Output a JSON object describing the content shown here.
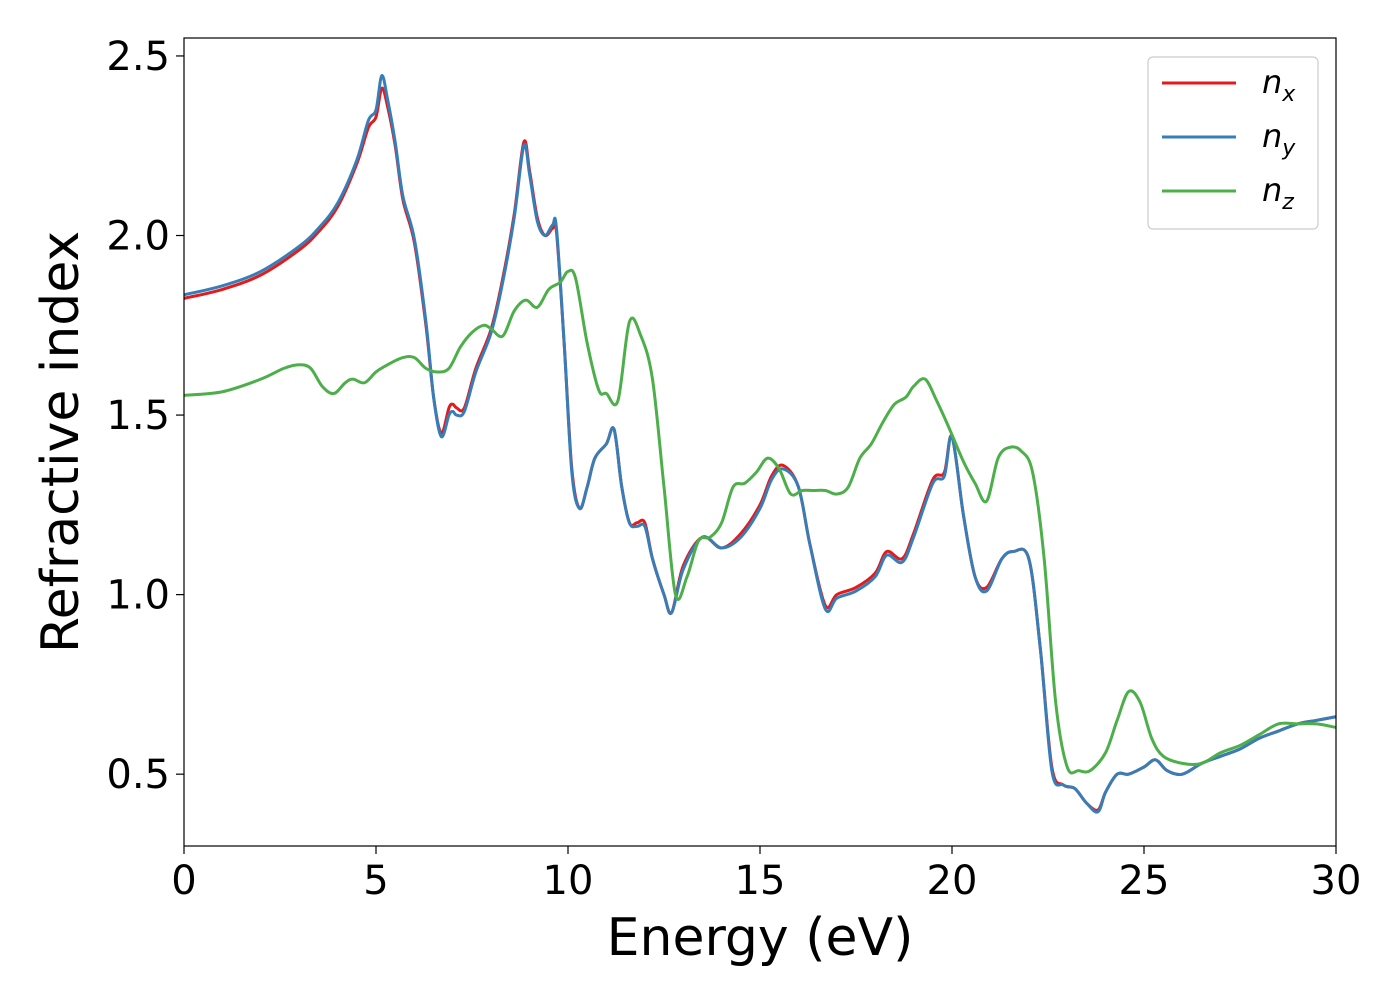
{
  "chart_data": {
    "type": "line",
    "xlabel": "Energy (eV)",
    "ylabel": "Refractive index",
    "xlim": [
      0,
      30
    ],
    "ylim": [
      0.3,
      2.55
    ],
    "xticks": [
      "0",
      "5",
      "10",
      "15",
      "20",
      "25",
      "30"
    ],
    "yticks": [
      "0.5",
      "1.0",
      "1.5",
      "2.0",
      "2.5"
    ],
    "grid": false,
    "legend_position": "top-right",
    "series": [
      {
        "key": "nx",
        "name": "n",
        "subscript": "x",
        "color": "#e41a1c",
        "x": [
          0,
          1,
          2,
          3,
          3.5,
          4,
          4.5,
          4.8,
          5.0,
          5.15,
          5.3,
          5.5,
          5.7,
          6.0,
          6.3,
          6.5,
          6.7,
          6.9,
          7.0,
          7.1,
          7.3,
          7.6,
          8.0,
          8.3,
          8.6,
          8.85,
          9.0,
          9.2,
          9.4,
          9.6,
          9.7,
          9.9,
          10.1,
          10.3,
          10.5,
          10.7,
          11.0,
          11.2,
          11.4,
          11.6,
          11.8,
          12.0,
          12.2,
          12.5,
          12.7,
          13.0,
          13.5,
          14.0,
          14.5,
          15.0,
          15.3,
          15.6,
          16.0,
          16.3,
          16.7,
          17.0,
          17.5,
          18.0,
          18.3,
          18.7,
          19.0,
          19.5,
          19.8,
          20.0,
          20.3,
          20.6,
          20.9,
          21.3,
          21.6,
          22.0,
          22.3,
          22.6,
          22.9,
          23.2,
          23.5,
          23.8,
          24.0,
          24.3,
          24.6,
          25.0,
          25.3,
          25.6,
          26.0,
          26.5,
          27.0,
          27.5,
          28.0,
          28.5,
          29.0,
          29.5,
          30.0
        ],
        "y": [
          1.825,
          1.85,
          1.89,
          1.96,
          2.01,
          2.08,
          2.2,
          2.3,
          2.33,
          2.41,
          2.36,
          2.25,
          2.1,
          1.98,
          1.75,
          1.55,
          1.45,
          1.52,
          1.53,
          1.52,
          1.52,
          1.63,
          1.74,
          1.88,
          2.06,
          2.26,
          2.18,
          2.05,
          2.0,
          2.02,
          2.01,
          1.7,
          1.35,
          1.24,
          1.3,
          1.38,
          1.42,
          1.46,
          1.3,
          1.2,
          1.2,
          1.2,
          1.1,
          1.0,
          0.95,
          1.08,
          1.16,
          1.13,
          1.17,
          1.25,
          1.33,
          1.36,
          1.3,
          1.14,
          0.97,
          1.0,
          1.02,
          1.06,
          1.12,
          1.1,
          1.17,
          1.32,
          1.34,
          1.44,
          1.22,
          1.05,
          1.02,
          1.1,
          1.12,
          1.1,
          0.85,
          0.52,
          0.47,
          0.46,
          0.42,
          0.4,
          0.45,
          0.5,
          0.5,
          0.52,
          0.54,
          0.51,
          0.5,
          0.53,
          0.55,
          0.57,
          0.6,
          0.62,
          0.64,
          0.65,
          0.66
        ]
      },
      {
        "key": "ny",
        "name": "n",
        "subscript": "y",
        "color": "#377eb8",
        "x": [
          0,
          1,
          2,
          3,
          3.5,
          4,
          4.5,
          4.8,
          5.0,
          5.15,
          5.3,
          5.5,
          5.7,
          6.0,
          6.3,
          6.5,
          6.7,
          6.9,
          7.0,
          7.1,
          7.3,
          7.6,
          8.0,
          8.3,
          8.6,
          8.85,
          9.0,
          9.2,
          9.4,
          9.6,
          9.7,
          9.9,
          10.1,
          10.3,
          10.5,
          10.7,
          11.0,
          11.2,
          11.4,
          11.6,
          11.8,
          12.0,
          12.2,
          12.5,
          12.7,
          13.0,
          13.5,
          14.0,
          14.5,
          15.0,
          15.3,
          15.6,
          16.0,
          16.3,
          16.7,
          17.0,
          17.5,
          18.0,
          18.3,
          18.7,
          19.0,
          19.5,
          19.8,
          20.0,
          20.3,
          20.6,
          20.9,
          21.3,
          21.6,
          22.0,
          22.3,
          22.6,
          22.9,
          23.2,
          23.5,
          23.8,
          24.0,
          24.3,
          24.6,
          25.0,
          25.3,
          25.6,
          26.0,
          26.5,
          27.0,
          27.5,
          28.0,
          28.5,
          29.0,
          29.5,
          30.0
        ],
        "y": [
          1.835,
          1.86,
          1.9,
          1.97,
          2.02,
          2.09,
          2.21,
          2.32,
          2.35,
          2.445,
          2.38,
          2.26,
          2.11,
          1.99,
          1.76,
          1.55,
          1.44,
          1.5,
          1.51,
          1.5,
          1.51,
          1.62,
          1.73,
          1.87,
          2.05,
          2.25,
          2.17,
          2.04,
          2.0,
          2.03,
          2.02,
          1.7,
          1.34,
          1.24,
          1.3,
          1.38,
          1.42,
          1.46,
          1.3,
          1.2,
          1.19,
          1.19,
          1.1,
          1.0,
          0.95,
          1.07,
          1.16,
          1.13,
          1.16,
          1.24,
          1.32,
          1.35,
          1.3,
          1.14,
          0.96,
          0.99,
          1.01,
          1.05,
          1.11,
          1.09,
          1.16,
          1.31,
          1.33,
          1.44,
          1.22,
          1.05,
          1.01,
          1.1,
          1.12,
          1.1,
          0.85,
          0.51,
          0.47,
          0.46,
          0.42,
          0.395,
          0.45,
          0.5,
          0.5,
          0.52,
          0.54,
          0.51,
          0.5,
          0.53,
          0.55,
          0.57,
          0.6,
          0.62,
          0.64,
          0.65,
          0.66
        ]
      },
      {
        "key": "nz",
        "name": "n",
        "subscript": "z",
        "color": "#4daf4a",
        "x": [
          0,
          1,
          2,
          2.6,
          3.0,
          3.3,
          3.6,
          3.9,
          4.2,
          4.4,
          4.7,
          5.0,
          5.3,
          5.7,
          6.0,
          6.3,
          6.6,
          6.9,
          7.2,
          7.5,
          7.8,
          8.0,
          8.3,
          8.6,
          8.9,
          9.2,
          9.5,
          9.8,
          10.0,
          10.2,
          10.5,
          10.8,
          11.0,
          11.3,
          11.6,
          11.9,
          12.2,
          12.5,
          12.8,
          13.1,
          13.4,
          13.7,
          14.0,
          14.3,
          14.6,
          14.9,
          15.2,
          15.5,
          15.8,
          16.1,
          16.4,
          16.7,
          17.0,
          17.3,
          17.6,
          17.9,
          18.2,
          18.5,
          18.8,
          19.0,
          19.3,
          19.6,
          19.9,
          20.3,
          20.6,
          20.9,
          21.2,
          21.5,
          21.8,
          22.1,
          22.4,
          22.7,
          23.0,
          23.3,
          23.6,
          24.0,
          24.3,
          24.6,
          24.9,
          25.2,
          25.5,
          26.0,
          26.5,
          27.0,
          27.5,
          28.0,
          28.5,
          29.0,
          29.5,
          30.0
        ],
        "y": [
          1.555,
          1.565,
          1.6,
          1.63,
          1.64,
          1.63,
          1.58,
          1.56,
          1.59,
          1.6,
          1.59,
          1.62,
          1.64,
          1.66,
          1.66,
          1.63,
          1.62,
          1.63,
          1.69,
          1.73,
          1.75,
          1.74,
          1.72,
          1.79,
          1.82,
          1.8,
          1.85,
          1.87,
          1.9,
          1.88,
          1.7,
          1.57,
          1.56,
          1.54,
          1.76,
          1.72,
          1.6,
          1.3,
          1.0,
          1.05,
          1.15,
          1.16,
          1.2,
          1.3,
          1.31,
          1.34,
          1.38,
          1.35,
          1.28,
          1.29,
          1.29,
          1.29,
          1.28,
          1.3,
          1.38,
          1.42,
          1.48,
          1.53,
          1.55,
          1.58,
          1.6,
          1.54,
          1.47,
          1.37,
          1.31,
          1.26,
          1.38,
          1.41,
          1.4,
          1.34,
          1.1,
          0.7,
          0.52,
          0.51,
          0.51,
          0.56,
          0.65,
          0.73,
          0.7,
          0.6,
          0.55,
          0.53,
          0.53,
          0.56,
          0.58,
          0.61,
          0.64,
          0.64,
          0.64,
          0.63
        ]
      }
    ]
  }
}
